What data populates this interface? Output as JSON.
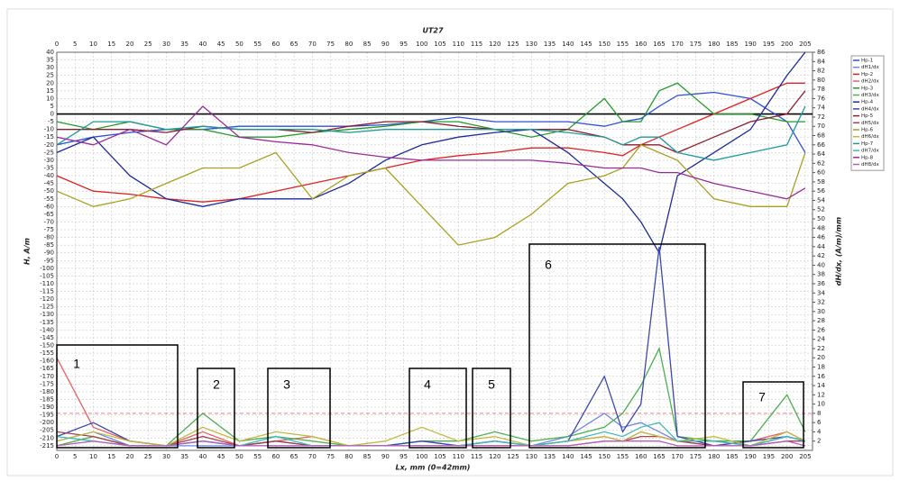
{
  "chart_data": {
    "type": "line",
    "title": "UT27",
    "x_label": "Lx, mm (0=42mm)",
    "y_label": "H, A/m",
    "y2_label": "dH/dx, (A/m)/mm",
    "grid": true,
    "x": [
      0,
      10,
      20,
      30,
      40,
      50,
      60,
      70,
      80,
      90,
      100,
      110,
      120,
      130,
      140,
      150,
      155,
      160,
      165,
      170,
      180,
      190,
      200,
      205
    ],
    "xlim": [
      0,
      207
    ],
    "xticks": [
      0,
      5,
      10,
      15,
      20,
      25,
      30,
      35,
      40,
      45,
      50,
      55,
      60,
      65,
      70,
      75,
      80,
      85,
      90,
      95,
      100,
      105,
      110,
      115,
      120,
      125,
      130,
      135,
      140,
      145,
      150,
      155,
      160,
      165,
      170,
      175,
      180,
      185,
      190,
      195,
      200,
      205
    ],
    "ylim": [
      -218,
      40
    ],
    "yticks": [
      40,
      35,
      30,
      25,
      20,
      15,
      10,
      5,
      0,
      -5,
      -10,
      -15,
      -20,
      -25,
      -30,
      -35,
      -40,
      -45,
      -50,
      -55,
      -60,
      -65,
      -70,
      -75,
      -80,
      -85,
      -90,
      -95,
      -100,
      -105,
      -110,
      -115,
      -120,
      -125,
      -130,
      -135,
      -140,
      -145,
      -150,
      -155,
      -160,
      -165,
      -170,
      -175,
      -180,
      -185,
      -190,
      -195,
      -200,
      -205,
      -210,
      -215
    ],
    "y2lim": [
      0,
      86
    ],
    "y2ticks": [
      2,
      4,
      6,
      8,
      10,
      12,
      14,
      16,
      18,
      20,
      22,
      24,
      26,
      28,
      30,
      32,
      34,
      36,
      38,
      40,
      42,
      44,
      46,
      48,
      50,
      52,
      54,
      56,
      58,
      60,
      62,
      64,
      66,
      68,
      70,
      72,
      74,
      76,
      78,
      80,
      82,
      84,
      86
    ],
    "reference_lines": [
      {
        "axis": "y",
        "value": 0,
        "color": "#000000"
      },
      {
        "axis": "y2",
        "value": 8,
        "color": "#f08080"
      }
    ],
    "series": [
      {
        "name": "Hp-1",
        "color": "#2f4fd8",
        "values": [
          -20,
          -15,
          -12,
          -10,
          -10,
          -8,
          -8,
          -8,
          -8,
          -7,
          -5,
          -2,
          -5,
          -5,
          -5,
          -8,
          -5,
          -3,
          5,
          12,
          14,
          10,
          -5,
          -25
        ]
      },
      {
        "name": "dH1/dx",
        "color": "#6f86e8",
        "axis": "y2",
        "values": [
          2,
          4,
          1,
          1,
          1,
          1,
          1,
          1,
          1,
          1,
          2,
          1,
          2,
          1,
          3,
          8,
          5,
          6,
          4,
          2,
          2,
          1,
          3,
          2
        ]
      },
      {
        "name": "Hp-2",
        "color": "#e02020",
        "values": [
          -40,
          -50,
          -52,
          -55,
          -57,
          -55,
          -50,
          -45,
          -40,
          -35,
          -30,
          -27,
          -25,
          -22,
          -22,
          -25,
          -27,
          -20,
          -15,
          -10,
          0,
          10,
          20,
          20
        ]
      },
      {
        "name": "dH2/dx",
        "color": "#e86060",
        "axis": "y2",
        "values": [
          20,
          5,
          2,
          1,
          4,
          1,
          2,
          3,
          1,
          1,
          1,
          1,
          1,
          1,
          2,
          3,
          2,
          4,
          3,
          2,
          1,
          2,
          4,
          2
        ]
      },
      {
        "name": "Hp-3",
        "color": "#239a2a",
        "values": [
          -5,
          -10,
          -5,
          -10,
          -10,
          -15,
          -15,
          -12,
          -10,
          -8,
          -5,
          -5,
          -10,
          -15,
          -10,
          10,
          -5,
          -5,
          15,
          20,
          0,
          0,
          -5,
          -5
        ]
      },
      {
        "name": "dH3/dx",
        "color": "#4cb050",
        "axis": "y2",
        "values": [
          1,
          3,
          1,
          1,
          8,
          2,
          3,
          2,
          1,
          1,
          2,
          2,
          4,
          2,
          3,
          5,
          8,
          14,
          22,
          3,
          2,
          2,
          12,
          4
        ]
      },
      {
        "name": "Hp-4",
        "color": "#1c2a9c",
        "values": [
          -25,
          -15,
          -40,
          -55,
          -60,
          -55,
          -55,
          -55,
          -45,
          -30,
          -20,
          -15,
          -12,
          -10,
          -25,
          -45,
          -55,
          -70,
          -90,
          -40,
          -25,
          -10,
          25,
          40
        ]
      },
      {
        "name": "dH4/dx",
        "color": "#3a48b0",
        "axis": "y2",
        "values": [
          3,
          6,
          2,
          1,
          2,
          1,
          2,
          1,
          1,
          1,
          2,
          1,
          2,
          1,
          2,
          16,
          4,
          10,
          44,
          3,
          1,
          2,
          3,
          2
        ]
      },
      {
        "name": "Hp-5",
        "color": "#8a1c2c",
        "values": [
          -10,
          -10,
          -10,
          -12,
          -8,
          -10,
          -10,
          -12,
          -8,
          -5,
          -5,
          -8,
          -10,
          -10,
          -10,
          -15,
          -20,
          -20,
          -20,
          -25,
          -15,
          -5,
          0,
          15
        ]
      },
      {
        "name": "dH5/dx",
        "color": "#a84050",
        "axis": "y2",
        "values": [
          4,
          3,
          1,
          1,
          3,
          1,
          2,
          1,
          1,
          1,
          1,
          1,
          1,
          1,
          1,
          2,
          2,
          3,
          3,
          2,
          1,
          1,
          2,
          2
        ]
      },
      {
        "name": "Hp-6",
        "color": "#a8a020",
        "values": [
          -50,
          -60,
          -55,
          -45,
          -35,
          -35,
          -25,
          -55,
          -40,
          -35,
          -60,
          -85,
          -80,
          -65,
          -45,
          -40,
          -35,
          -20,
          -25,
          -30,
          -55,
          -60,
          -60,
          -25
        ]
      },
      {
        "name": "dH6/dx",
        "color": "#c0b840",
        "axis": "y2",
        "values": [
          2,
          4,
          2,
          1,
          5,
          2,
          4,
          3,
          1,
          2,
          5,
          2,
          3,
          1,
          2,
          3,
          2,
          4,
          3,
          2,
          3,
          1,
          4,
          2
        ]
      },
      {
        "name": "Hp-7",
        "color": "#1f9a9a",
        "values": [
          -20,
          -5,
          -5,
          -10,
          -8,
          -10,
          -10,
          -10,
          -12,
          -10,
          -10,
          -10,
          -10,
          -10,
          -12,
          -15,
          -20,
          -15,
          -15,
          -25,
          -30,
          -25,
          -20,
          5
        ]
      },
      {
        "name": "dH7/dx",
        "color": "#40b8b8",
        "axis": "y2",
        "values": [
          3,
          2,
          1,
          1,
          2,
          1,
          3,
          1,
          1,
          1,
          1,
          1,
          2,
          1,
          2,
          4,
          3,
          5,
          6,
          2,
          2,
          1,
          3,
          2
        ]
      },
      {
        "name": "Hp-8",
        "color": "#9a2a9a",
        "values": [
          -15,
          -20,
          -10,
          -20,
          5,
          -15,
          -18,
          -20,
          -25,
          -28,
          -30,
          -30,
          -30,
          -30,
          -32,
          -35,
          -35,
          -35,
          -38,
          -38,
          -45,
          -50,
          -55,
          -48
        ]
      },
      {
        "name": "dH8/dx",
        "color": "#b860b8",
        "axis": "y2",
        "values": [
          1,
          2,
          1,
          1,
          2,
          1,
          1,
          1,
          1,
          1,
          1,
          1,
          1,
          1,
          1,
          2,
          2,
          2,
          2,
          1,
          1,
          1,
          2,
          1
        ]
      }
    ],
    "annotations": [
      "1",
      "2",
      "3",
      "4",
      "5",
      "6",
      "7"
    ]
  }
}
